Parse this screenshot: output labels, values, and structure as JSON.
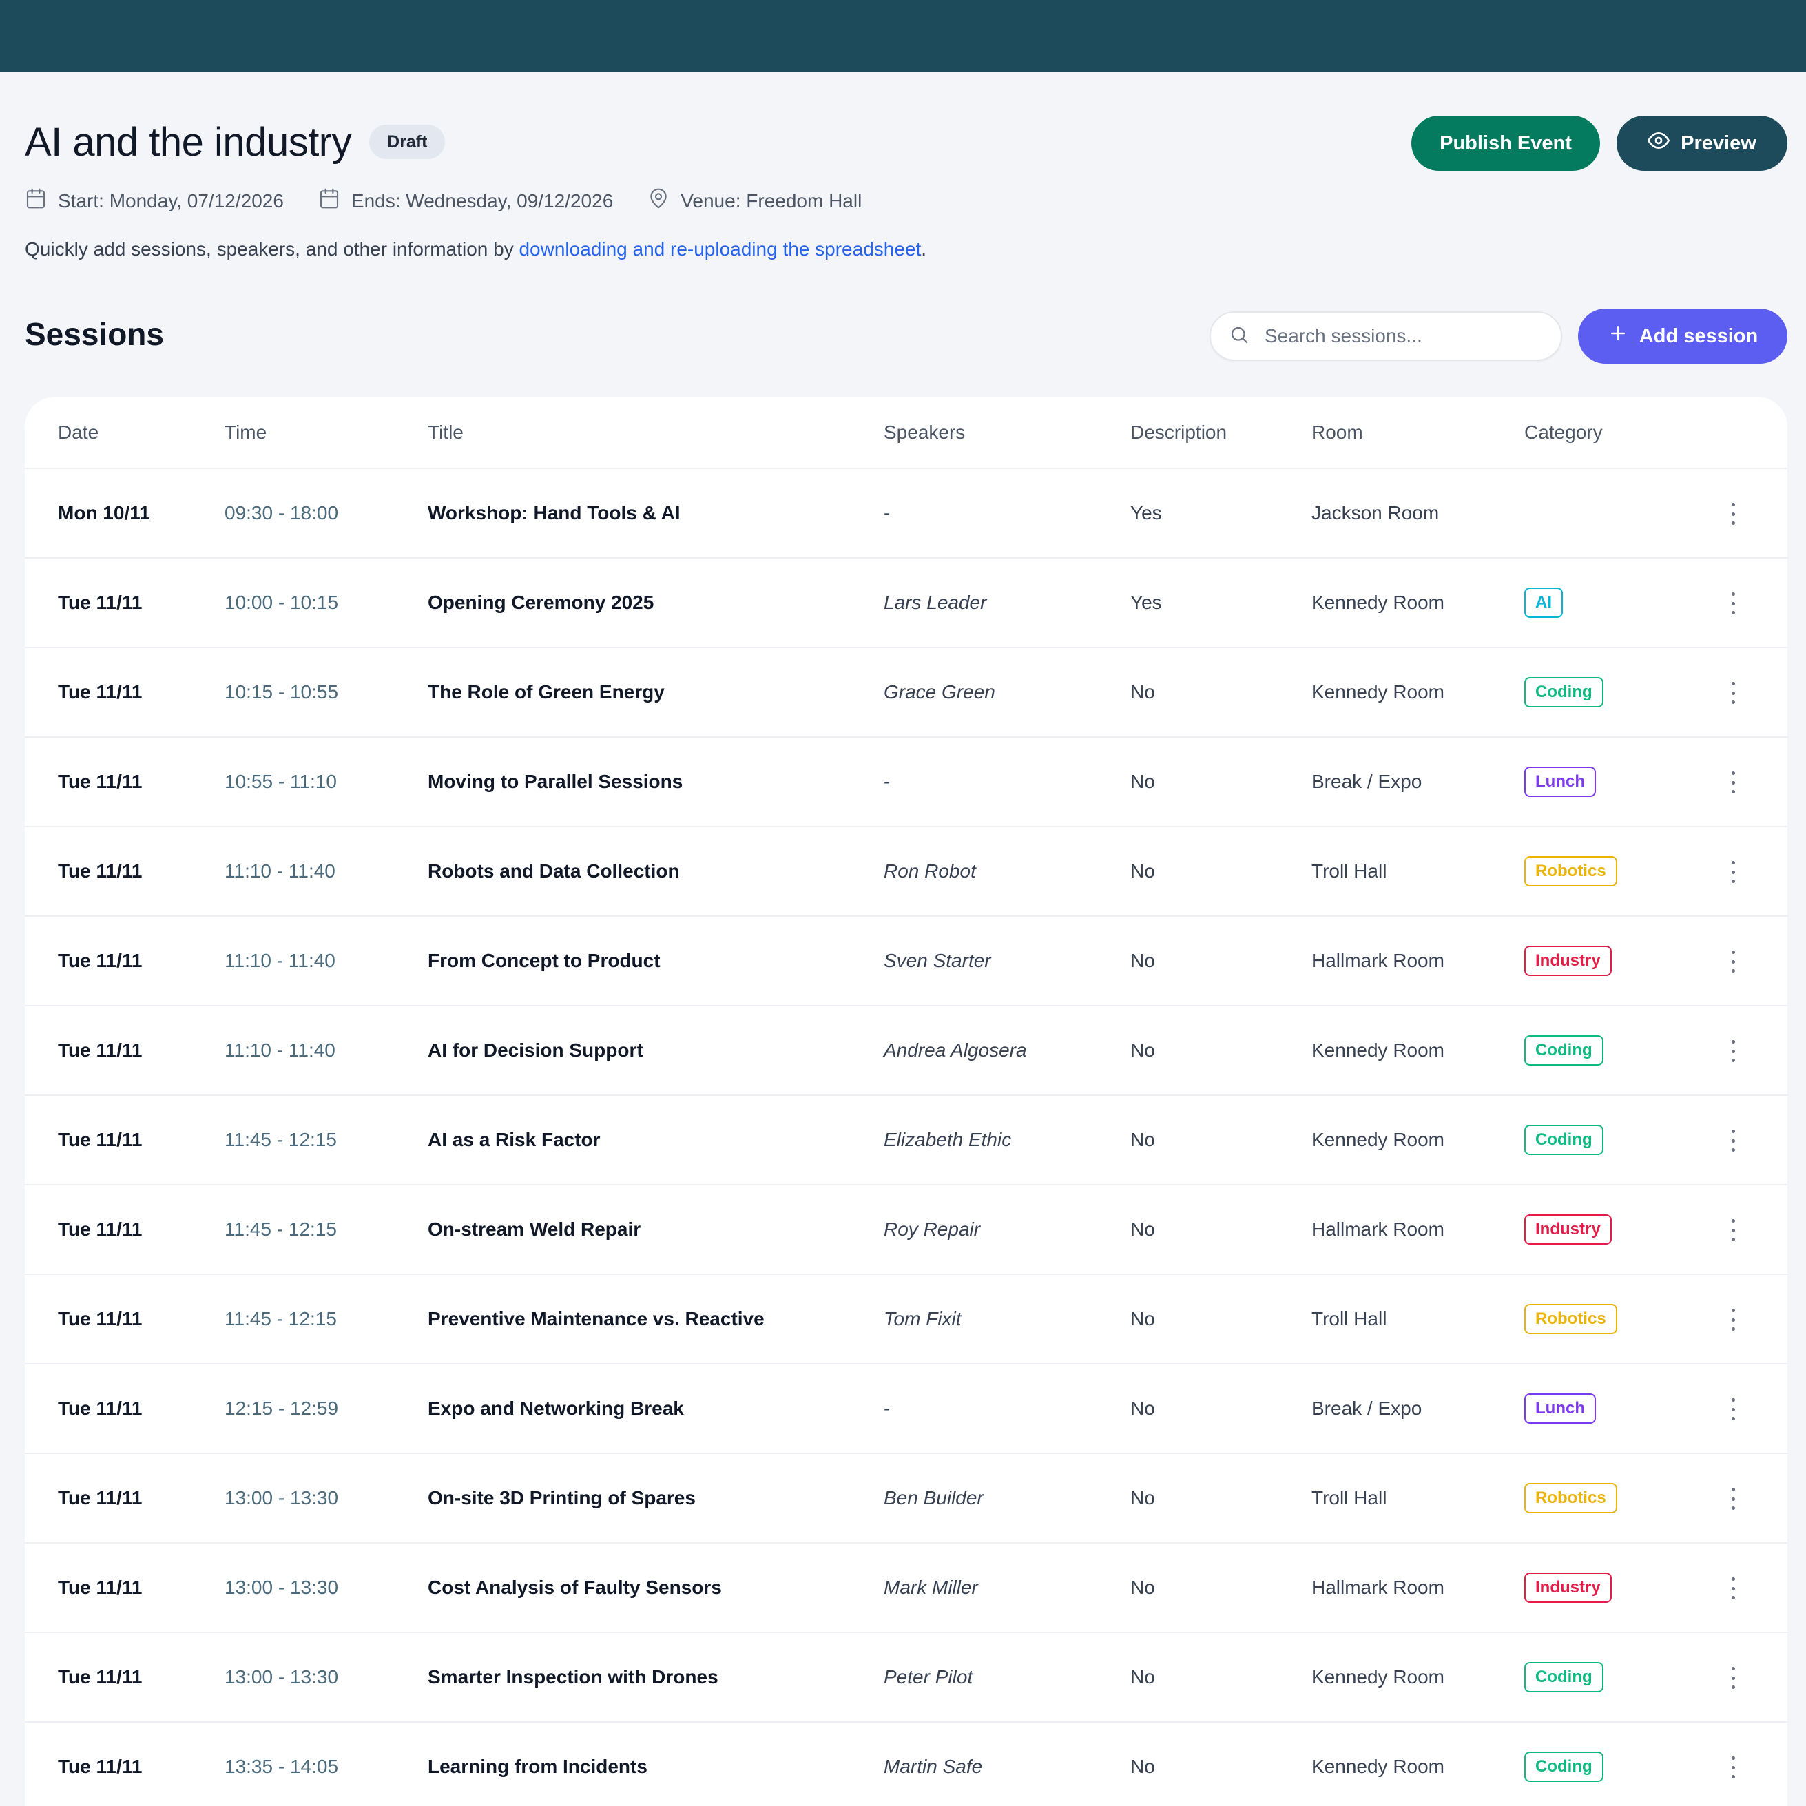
{
  "event": {
    "title": "AI and the industry",
    "status": "Draft",
    "start": "Start: Monday, 07/12/2026",
    "ends": "Ends: Wednesday, 09/12/2026",
    "venue": "Venue: Freedom Hall"
  },
  "actions": {
    "publish_label": "Publish Event",
    "preview_label": "Preview"
  },
  "helper": {
    "text": "Quickly add sessions, speakers, and other information by ",
    "link": "downloading and re-uploading the spreadsheet",
    "suffix": "."
  },
  "sessions": {
    "heading": "Sessions",
    "search_placeholder": "Search sessions...",
    "add_label": "Add session",
    "columns": [
      "Date",
      "Time",
      "Title",
      "Speakers",
      "Description",
      "Room",
      "Category"
    ],
    "rows": [
      {
        "date": "Mon 10/11",
        "time": "09:30 - 18:00",
        "title": "Workshop: Hand Tools & AI",
        "speakers": "-",
        "description": "Yes",
        "room": "Jackson Room",
        "category": ""
      },
      {
        "date": "Tue 11/11",
        "time": "10:00 - 10:15",
        "title": "Opening Ceremony 2025",
        "speakers": "Lars Leader",
        "description": "Yes",
        "room": "Kennedy Room",
        "category": "AI"
      },
      {
        "date": "Tue 11/11",
        "time": "10:15 - 10:55",
        "title": "The Role of Green Energy",
        "speakers": "Grace Green",
        "description": "No",
        "room": "Kennedy Room",
        "category": "Coding"
      },
      {
        "date": "Tue 11/11",
        "time": "10:55 - 11:10",
        "title": "Moving to Parallel Sessions",
        "speakers": "-",
        "description": "No",
        "room": "Break / Expo",
        "category": "Lunch"
      },
      {
        "date": "Tue 11/11",
        "time": "11:10 - 11:40",
        "title": "Robots and Data Collection",
        "speakers": "Ron Robot",
        "description": "No",
        "room": "Troll Hall",
        "category": "Robotics"
      },
      {
        "date": "Tue 11/11",
        "time": "11:10 - 11:40",
        "title": "From Concept to Product",
        "speakers": "Sven Starter",
        "description": "No",
        "room": "Hallmark Room",
        "category": "Industry"
      },
      {
        "date": "Tue 11/11",
        "time": "11:10 - 11:40",
        "title": "AI for Decision Support",
        "speakers": "Andrea Algosera",
        "description": "No",
        "room": "Kennedy Room",
        "category": "Coding"
      },
      {
        "date": "Tue 11/11",
        "time": "11:45 - 12:15",
        "title": "AI as a Risk Factor",
        "speakers": "Elizabeth Ethic",
        "description": "No",
        "room": "Kennedy Room",
        "category": "Coding"
      },
      {
        "date": "Tue 11/11",
        "time": "11:45 - 12:15",
        "title": "On-stream Weld Repair",
        "speakers": "Roy Repair",
        "description": "No",
        "room": "Hallmark Room",
        "category": "Industry"
      },
      {
        "date": "Tue 11/11",
        "time": "11:45 - 12:15",
        "title": "Preventive Maintenance vs. Reactive",
        "speakers": "Tom Fixit",
        "description": "No",
        "room": "Troll Hall",
        "category": "Robotics"
      },
      {
        "date": "Tue 11/11",
        "time": "12:15 - 12:59",
        "title": "Expo and Networking Break",
        "speakers": "-",
        "description": "No",
        "room": "Break / Expo",
        "category": "Lunch"
      },
      {
        "date": "Tue 11/11",
        "time": "13:00 - 13:30",
        "title": "On-site 3D Printing of Spares",
        "speakers": "Ben Builder",
        "description": "No",
        "room": "Troll Hall",
        "category": "Robotics"
      },
      {
        "date": "Tue 11/11",
        "time": "13:00 - 13:30",
        "title": "Cost Analysis of Faulty Sensors",
        "speakers": "Mark Miller",
        "description": "No",
        "room": "Hallmark Room",
        "category": "Industry"
      },
      {
        "date": "Tue 11/11",
        "time": "13:00 - 13:30",
        "title": "Smarter Inspection with Drones",
        "speakers": "Peter Pilot",
        "description": "No",
        "room": "Kennedy Room",
        "category": "Coding"
      },
      {
        "date": "Tue 11/11",
        "time": "13:35 - 14:05",
        "title": "Learning from Incidents",
        "speakers": "Martin Safe",
        "description": "No",
        "room": "Kennedy Room",
        "category": "Coding"
      }
    ]
  },
  "category_colors": {
    "AI": "#06b6d4",
    "Coding": "#10b981",
    "Lunch": "#7c3aed",
    "Robotics": "#eab308",
    "Industry": "#e11d48"
  },
  "colors": {
    "topbar": "#1d4b5c",
    "publish": "#047a5f",
    "preview": "#1d4b5c",
    "add_session": "#5b5ef0",
    "link": "#2563eb"
  },
  "icons": [
    "calendar-icon",
    "map-pin-icon",
    "eye-icon",
    "search-icon",
    "plus-icon",
    "more-vertical-icon"
  ]
}
